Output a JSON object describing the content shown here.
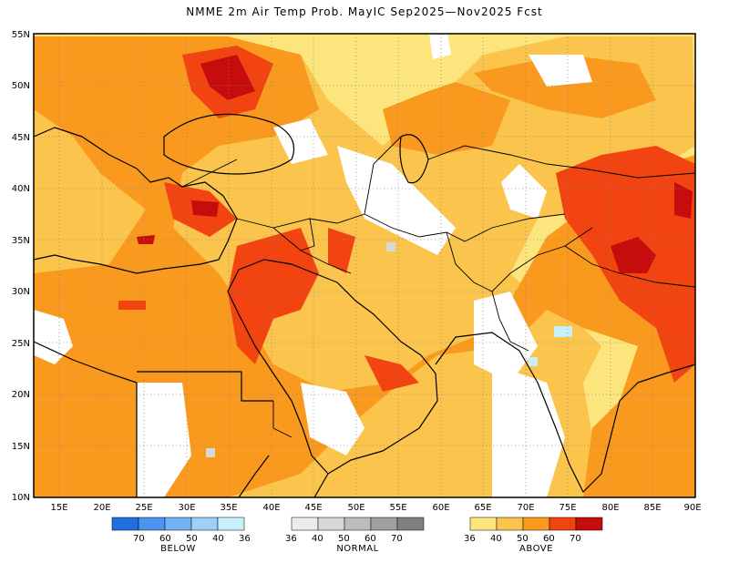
{
  "title": "NMME 2m Air Temp Prob. MayIC  Sep2025—Nov2025 Fcst",
  "map": {
    "lat_labels": [
      "55N",
      "50N",
      "45N",
      "40N",
      "35N",
      "30N",
      "25N",
      "20N",
      "15N",
      "10N"
    ],
    "lon_labels": [
      "15E",
      "20E",
      "25E",
      "30E",
      "35E",
      "40E",
      "45E",
      "50E",
      "55E",
      "60E",
      "65E",
      "70E",
      "75E",
      "80E",
      "85E",
      "90E"
    ],
    "extent": {
      "lon_min": 12,
      "lon_max": 90,
      "lat_min": 10,
      "lat_max": 55
    }
  },
  "legend": {
    "below": {
      "caption": "BELOW",
      "labels": [
        "70",
        "60",
        "50",
        "40",
        "36"
      ],
      "colors": [
        "#1f6fe0",
        "#4a94ef",
        "#72b2f5",
        "#9cd0f8",
        "#c8f0fa"
      ]
    },
    "normal": {
      "caption": "NORMAL",
      "labels": [
        "36",
        "40",
        "50",
        "60",
        "70"
      ],
      "colors": [
        "#ececec",
        "#d8d8d8",
        "#bdbdbd",
        "#a0a0a0",
        "#808080"
      ]
    },
    "above": {
      "caption": "ABOVE",
      "labels": [
        "36",
        "40",
        "50",
        "60",
        "70"
      ],
      "colors": [
        "#fde57e",
        "#fbc44c",
        "#f99a1e",
        "#f24410",
        "#c60c0c"
      ]
    }
  }
}
